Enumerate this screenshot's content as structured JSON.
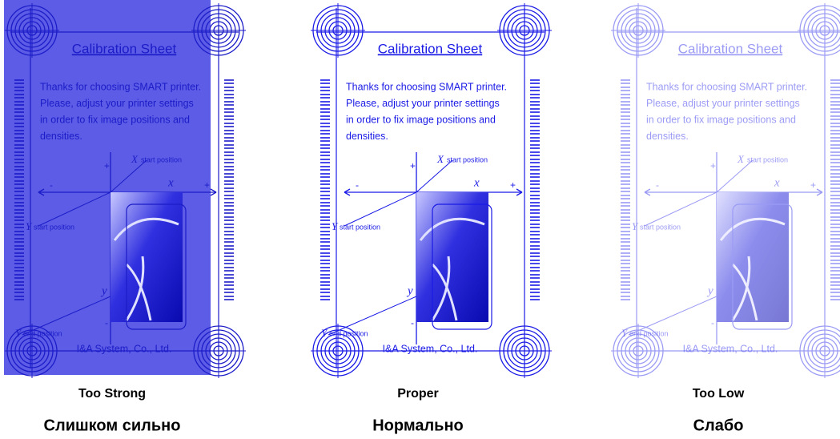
{
  "sheets": [
    {
      "title": "Calibration Sheet",
      "message": [
        "Thanks for choosing SMART printer.",
        "Please, adjust your printer settings",
        "in order to fix image positions and",
        "densities."
      ],
      "x_start": {
        "symbol": "X",
        "text": "start position"
      },
      "y_start": {
        "symbol": "Y",
        "text": "start position"
      },
      "y_end": {
        "symbol": "Y",
        "text": "end position"
      },
      "x_axis": "x",
      "y_axis": "y",
      "plus_x": "+",
      "minus_x": "-",
      "plus_y": "+",
      "minus_y": "-",
      "footer": "I&A System, Co., Ltd.",
      "caption": "Too Strong",
      "caption_ru": "Слишком сильно"
    },
    {
      "title": "Calibration Sheet",
      "message": [
        "Thanks for choosing SMART printer.",
        "Please, adjust your printer settings",
        "in order to fix image positions and",
        "densities."
      ],
      "x_start": {
        "symbol": "X",
        "text": "start position"
      },
      "y_start": {
        "symbol": "Y",
        "text": "start position"
      },
      "y_end": {
        "symbol": "Y",
        "text": "end position"
      },
      "x_axis": "x",
      "y_axis": "y",
      "plus_x": "+",
      "minus_x": "-",
      "plus_y": "+",
      "minus_y": "-",
      "footer": "I&A System, Co., Ltd.",
      "caption": "Proper",
      "caption_ru": "Нормально"
    },
    {
      "title": "Calibration Sheet",
      "message": [
        "Thanks for choosing SMART printer.",
        "Please, adjust your printer settings",
        "in order to fix image positions and",
        "densities."
      ],
      "x_start": {
        "symbol": "X",
        "text": "start position"
      },
      "y_start": {
        "symbol": "Y",
        "text": "start position"
      },
      "y_end": {
        "symbol": "Y",
        "text": "end position"
      },
      "x_axis": "x",
      "y_axis": "y",
      "plus_x": "+",
      "minus_x": "-",
      "plus_y": "+",
      "minus_y": "-",
      "footer": "I&A System, Co., Ltd.",
      "caption": "Too Low",
      "caption_ru": "Слабо"
    }
  ]
}
